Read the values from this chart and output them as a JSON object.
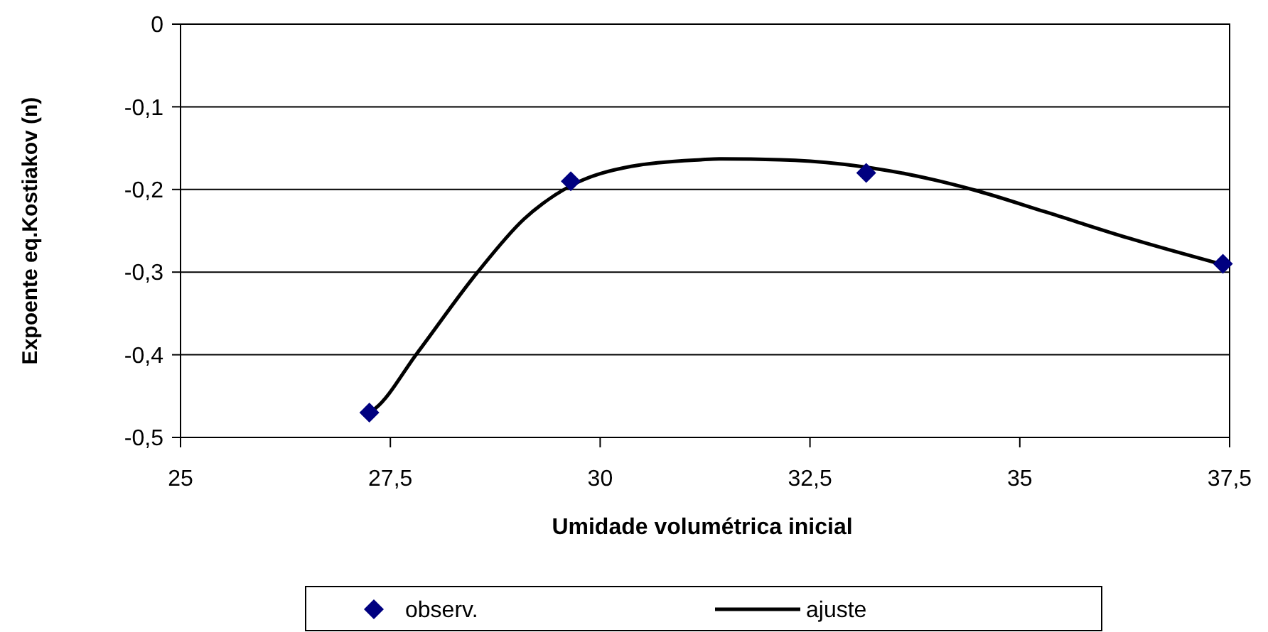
{
  "chart_data": {
    "type": "scatter",
    "xlabel": "Umidade volumétrica inicial",
    "ylabel": "Expoente eq.Kostiakov (n)",
    "xlim": [
      25,
      37.5
    ],
    "xticks": [
      {
        "value": 25,
        "label": "25"
      },
      {
        "value": 27.5,
        "label": "27,5"
      },
      {
        "value": 30,
        "label": "30"
      },
      {
        "value": 32.5,
        "label": "32,5"
      },
      {
        "value": 35,
        "label": "35"
      },
      {
        "value": 37.5,
        "label": "37,5"
      }
    ],
    "ylim": [
      -0.5,
      0
    ],
    "yticks": [
      {
        "value": -0.5,
        "label": "-0,5"
      },
      {
        "value": -0.4,
        "label": "-0,4"
      },
      {
        "value": -0.3,
        "label": "-0,3"
      },
      {
        "value": -0.2,
        "label": "-0,2"
      },
      {
        "value": -0.1,
        "label": "-0,1"
      },
      {
        "value": 0,
        "label": "0"
      }
    ],
    "grid": "y",
    "legend": "bottom",
    "series": [
      {
        "name": "observ.",
        "marker": "diamond",
        "color": "#000080",
        "x": [
          27.25,
          29.65,
          33.17,
          37.42
        ],
        "values": [
          -0.47,
          -0.19,
          -0.18,
          -0.29
        ]
      },
      {
        "name": "ajuste",
        "type": "line",
        "marker": "none",
        "line_style": "solid",
        "color": "#000000",
        "x": [
          27.25,
          27.32,
          27.82,
          28.54,
          29.09,
          29.64,
          30.37,
          31.2,
          31.42,
          32.14,
          33.64,
          34.47,
          35.3,
          36.3,
          37.42
        ],
        "values": [
          -0.47,
          -0.465,
          -0.398,
          -0.3,
          -0.236,
          -0.196,
          -0.172,
          -0.164,
          -0.163,
          -0.164,
          -0.181,
          -0.201,
          -0.227,
          -0.259,
          -0.291
        ]
      }
    ]
  }
}
